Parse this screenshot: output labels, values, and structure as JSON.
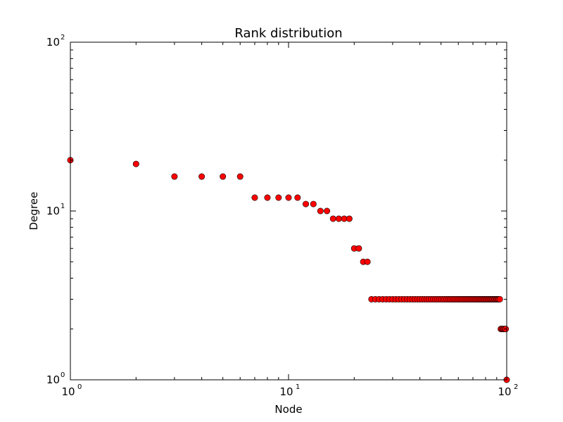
{
  "chart_data": {
    "type": "scatter",
    "title": "Rank distribution",
    "xlabel": "Node",
    "ylabel": "Degree",
    "xscale": "log",
    "yscale": "log",
    "xlim": [
      1,
      100
    ],
    "ylim": [
      1,
      100
    ],
    "grid": false,
    "marker_color": "#ff0000",
    "marker_edge_color": "#000000",
    "x_ticks": [
      {
        "base": "10",
        "exp": "0"
      },
      {
        "base": "10",
        "exp": "1"
      },
      {
        "base": "10",
        "exp": "2"
      }
    ],
    "y_ticks": [
      {
        "base": "10",
        "exp": "0"
      },
      {
        "base": "10",
        "exp": "1"
      },
      {
        "base": "10",
        "exp": "2"
      }
    ],
    "series": [
      {
        "x": [
          1,
          2,
          3,
          4,
          5,
          6,
          7,
          8,
          9,
          10,
          11,
          12,
          13,
          14,
          15,
          16,
          17,
          18,
          19,
          20,
          21,
          22,
          23,
          24,
          25,
          26,
          27,
          28,
          29,
          30,
          31,
          32,
          33,
          34,
          35,
          36,
          37,
          38,
          39,
          40,
          41,
          42,
          43,
          44,
          45,
          46,
          47,
          48,
          49,
          50,
          51,
          52,
          53,
          54,
          55,
          56,
          57,
          58,
          59,
          60,
          61,
          62,
          63,
          64,
          65,
          66,
          67,
          68,
          69,
          70,
          71,
          72,
          73,
          74,
          75,
          76,
          77,
          78,
          79,
          80,
          81,
          82,
          83,
          84,
          85,
          86,
          87,
          88,
          89,
          90,
          91,
          92,
          93,
          94,
          95,
          96,
          97,
          98,
          99,
          100
        ],
        "y": [
          20,
          19,
          16,
          16,
          16,
          16,
          12,
          12,
          12,
          12,
          12,
          11,
          11,
          10,
          10,
          9,
          9,
          9,
          9,
          6,
          6,
          5,
          5,
          3,
          3,
          3,
          3,
          3,
          3,
          3,
          3,
          3,
          3,
          3,
          3,
          3,
          3,
          3,
          3,
          3,
          3,
          3,
          3,
          3,
          3,
          3,
          3,
          3,
          3,
          3,
          3,
          3,
          3,
          3,
          3,
          3,
          3,
          3,
          3,
          3,
          3,
          3,
          3,
          3,
          3,
          3,
          3,
          3,
          3,
          3,
          3,
          3,
          3,
          3,
          3,
          3,
          3,
          3,
          3,
          3,
          3,
          3,
          3,
          3,
          3,
          3,
          3,
          3,
          3,
          3,
          3,
          3,
          3,
          2,
          2,
          2,
          2,
          2,
          2,
          1
        ]
      }
    ]
  }
}
